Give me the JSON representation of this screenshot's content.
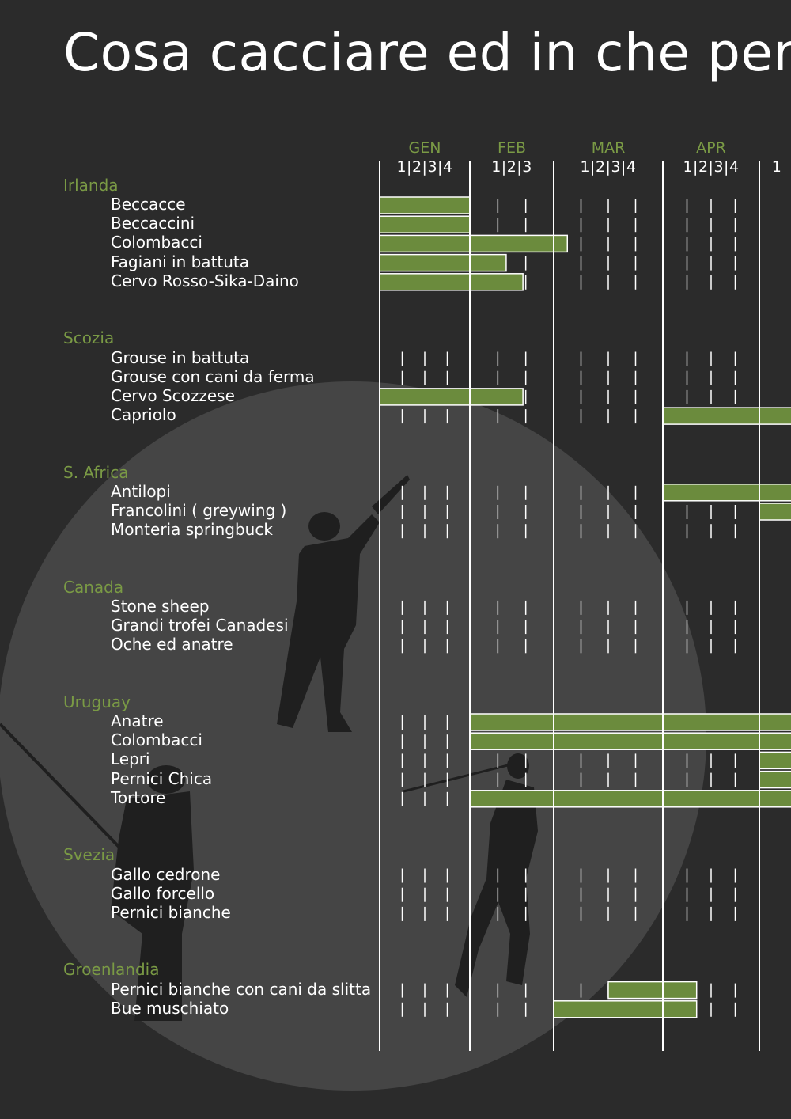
{
  "title": "Cosa cacciare ed in che periodo",
  "chart_data": {
    "type": "gantt",
    "months": [
      {
        "label": "GEN",
        "weeks": "1|2|3|4",
        "n": 4
      },
      {
        "label": "FEB",
        "weeks": "1|2|3",
        "n": 3
      },
      {
        "label": "MAR",
        "weeks": "1|2|3|4",
        "n": 4
      },
      {
        "label": "APR",
        "weeks": "1|2|3|4",
        "n": 4
      },
      {
        "label": "",
        "weeks": "1",
        "n": 1
      }
    ],
    "groups": [
      {
        "country": "Irlanda",
        "activities": [
          {
            "name": "Beccacce",
            "start": 0,
            "end": 4
          },
          {
            "name": "Beccaccini",
            "start": 0,
            "end": 4
          },
          {
            "name": "Colombacci",
            "start": 0,
            "end": 7.5
          },
          {
            "name": "Fagiani in battuta",
            "start": 0,
            "end": 5.3
          },
          {
            "name": "Cervo Rosso-Sika-Daino",
            "start": 0,
            "end": 5.9
          }
        ]
      },
      {
        "country": "Scozia",
        "activities": [
          {
            "name": "Grouse in battuta",
            "start": null,
            "end": null
          },
          {
            "name": "Grouse con cani da ferma",
            "start": null,
            "end": null
          },
          {
            "name": "Cervo Scozzese",
            "start": 0,
            "end": 5.9
          },
          {
            "name": "Capriolo",
            "start": 11,
            "end": 16
          }
        ]
      },
      {
        "country": "S. Africa",
        "activities": [
          {
            "name": "Antilopi",
            "start": 11,
            "end": 16
          },
          {
            "name": "Francolini ( greywing )",
            "start": 15,
            "end": 16
          },
          {
            "name": "Monteria springbuck",
            "start": null,
            "end": null
          }
        ]
      },
      {
        "country": "Canada",
        "activities": [
          {
            "name": "Stone sheep",
            "start": null,
            "end": null
          },
          {
            "name": "Grandi trofei Canadesi",
            "start": null,
            "end": null
          },
          {
            "name": "Oche ed anatre",
            "start": null,
            "end": null
          }
        ]
      },
      {
        "country": "Uruguay",
        "activities": [
          {
            "name": "Anatre",
            "start": 4,
            "end": 16
          },
          {
            "name": "Colombacci",
            "start": 4,
            "end": 16
          },
          {
            "name": "Lepri",
            "start": 15,
            "end": 16
          },
          {
            "name": "Pernici Chica",
            "start": 15,
            "end": 16
          },
          {
            "name": "Tortore",
            "start": 4,
            "end": 16
          }
        ]
      },
      {
        "country": "Svezia",
        "activities": [
          {
            "name": "Gallo cedrone",
            "start": null,
            "end": null
          },
          {
            "name": "Gallo forcello",
            "start": null,
            "end": null
          },
          {
            "name": "Pernici bianche",
            "start": null,
            "end": null
          }
        ]
      },
      {
        "country": "Groenlandia",
        "activities": [
          {
            "name": "Pernici bianche con cani da slitta",
            "start": 9,
            "end": 12.4
          },
          {
            "name": "Bue muschiato",
            "start": 7,
            "end": 12.4
          }
        ]
      }
    ]
  },
  "colors": {
    "background": "#2b2b2b",
    "circle": "#454545",
    "silhouette": "#1f1f1f",
    "bar": "#6b8b3d",
    "accent": "#7a9a45",
    "text": "#ffffff"
  }
}
